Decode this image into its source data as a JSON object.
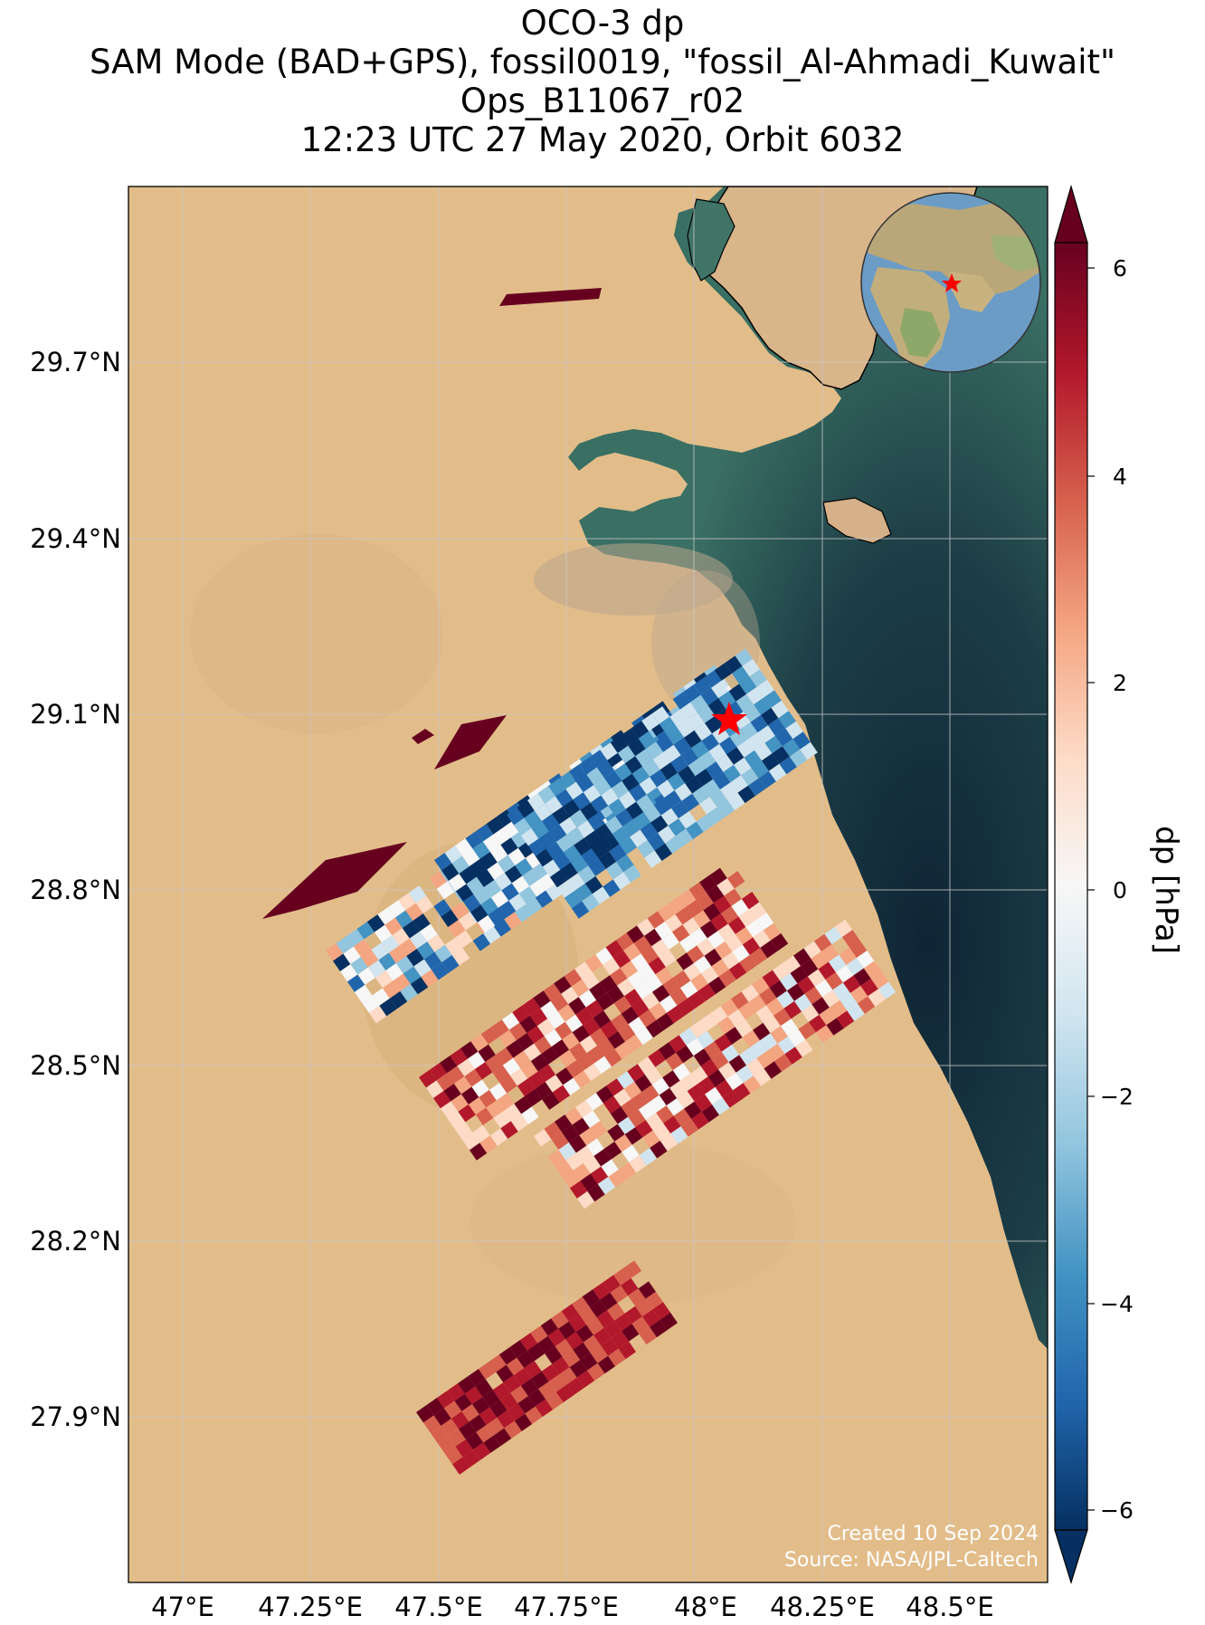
{
  "title": {
    "line1": "OCO-3 dp",
    "line2": "SAM Mode (BAD+GPS), fossil0019, \"fossil_Al-Ahmadi_Kuwait\"",
    "line3": "Ops_B11067_r02",
    "line4": "12:23 UTC 27 May 2020, Orbit 6032"
  },
  "axes": {
    "lon_ticks": [
      "47°E",
      "47.25°E",
      "47.5°E",
      "47.75°E",
      "48°E",
      "48.25°E",
      "48.5°E"
    ],
    "lat_ticks": [
      "29.7°N",
      "29.4°N",
      "29.1°N",
      "28.8°N",
      "28.5°N",
      "28.2°N",
      "27.9°N"
    ]
  },
  "colorbar": {
    "label": "dp [hPa]",
    "ticks": [
      "6",
      "4",
      "2",
      "0",
      "−2",
      "−4",
      "−6"
    ],
    "colors": [
      "#67001f",
      "#b2182b",
      "#d6604d",
      "#f4a582",
      "#fddbc7",
      "#f7f7f7",
      "#d1e5f0",
      "#92c5de",
      "#4393c3",
      "#2166ac",
      "#053061"
    ]
  },
  "credits": {
    "created": "Created 10 Sep 2024",
    "source": "Source: NASA/JPL-Caltech"
  },
  "colors": {
    "land": "#e2bd8a",
    "sea_shallow": "#3f7466",
    "sea_deep": "#0f2535",
    "target_star": "#ff0000"
  }
}
